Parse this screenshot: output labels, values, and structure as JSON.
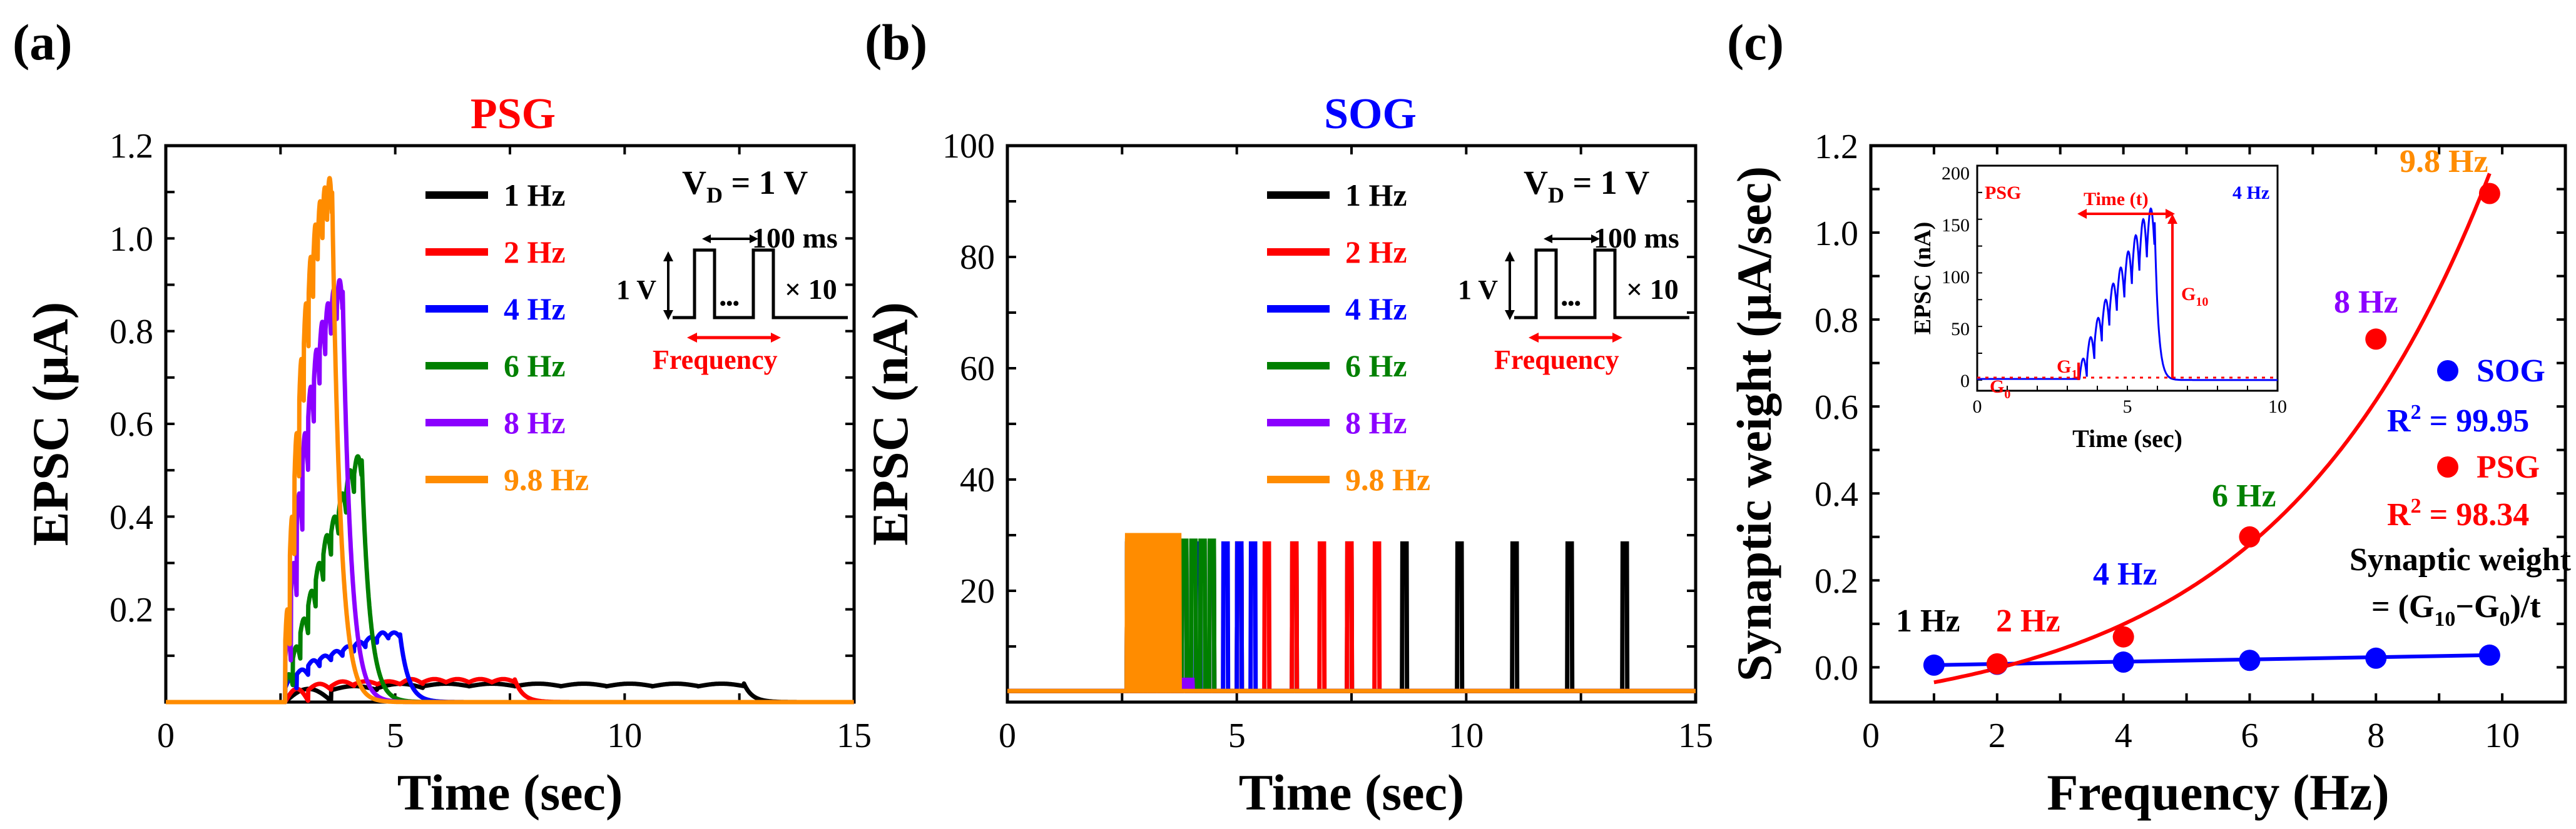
{
  "colors": {
    "axis": "#000000",
    "hz1": "#000000",
    "hz2": "#ff0000",
    "hz4": "#0000ff",
    "hz6": "#008000",
    "hz8": "#8b00ff",
    "hz98": "#ff8c00",
    "red": "#ff0000",
    "blue": "#0000ff"
  },
  "panels": {
    "a": {
      "letter": "(a)",
      "title": "PSG",
      "ylabel": "EPSC (μA)",
      "xlabel": "Time (sec)",
      "xticks": [
        "0",
        "5",
        "10",
        "15"
      ],
      "yticks": [
        "0.2",
        "0.4",
        "0.6",
        "0.8",
        "1.0",
        "1.2"
      ]
    },
    "b": {
      "letter": "(b)",
      "title": "SOG",
      "ylabel": "EPSC (nA)",
      "xlabel": "Time (sec)",
      "xticks": [
        "0",
        "5",
        "10",
        "15"
      ],
      "yticks": [
        "20",
        "40",
        "60",
        "80",
        "100"
      ]
    },
    "c": {
      "letter": "(c)",
      "ylabel": "Synaptic weight (μA/sec)",
      "xlabel": "Frequency (Hz)",
      "xticks": [
        "0",
        "2",
        "4",
        "6",
        "8",
        "10"
      ],
      "yticks": [
        "0.0",
        "0.2",
        "0.4",
        "0.6",
        "0.8",
        "1.0",
        "1.2"
      ]
    }
  },
  "legend": [
    "1 Hz",
    "2 Hz",
    "4 Hz",
    "6 Hz",
    "8 Hz",
    "9.8 Hz"
  ],
  "pulse_diagram": {
    "vd_main": "V",
    "vd_sub": "D",
    "vd_rest": " = 1 V",
    "amplitude": "1 V",
    "period": "100 ms",
    "repeat": "× 10",
    "dots": "•••",
    "frequency": "Frequency"
  },
  "panel_c_labels": {
    "points": [
      "1 Hz",
      "2 Hz",
      "4 Hz",
      "6 Hz",
      "8 Hz",
      "9.8 Hz"
    ],
    "sog_legend": "SOG",
    "sog_r2_pre": "R",
    "sog_r2_sup": "2",
    "sog_r2_val": " = 99.95",
    "psg_legend": "PSG",
    "psg_r2_pre": "R",
    "psg_r2_sup": "2",
    "psg_r2_val": " = 98.34",
    "formula_title": "Synaptic weight",
    "formula_pre": "= (G",
    "formula_sub1": "10",
    "formula_mid": "−G",
    "formula_sub2": "0",
    "formula_post": ")/t"
  },
  "inset": {
    "ylabel": "EPSC (nA)",
    "xlabel": "Time (sec)",
    "xticks": [
      "0",
      "5",
      "10"
    ],
    "yticks": [
      "0",
      "50",
      "100",
      "150",
      "200"
    ],
    "psg": "PSG",
    "freq": "4 Hz",
    "time_label": "Time (t)",
    "g10_main": "G",
    "g10_sub": "10",
    "g1_main": "G",
    "g1_sub": "1",
    "g0_main": "G",
    "g0_sub": "0"
  },
  "chart_data": [
    {
      "type": "line",
      "panel": "a",
      "title": "PSG",
      "xlabel": "Time (sec)",
      "ylabel": "EPSC (μA)",
      "xlim": [
        0,
        15
      ],
      "ylim": [
        0,
        1.2
      ],
      "series": [
        {
          "name": "1 Hz",
          "start": 2.6,
          "period": 1.0,
          "count": 10,
          "amp": [
            0.03,
            0.035,
            0.04,
            0.04,
            0.04,
            0.04,
            0.04,
            0.04,
            0.04,
            0.04
          ]
        },
        {
          "name": "2 Hz",
          "start": 2.6,
          "period": 0.5,
          "count": 10,
          "amp": [
            0.03,
            0.04,
            0.045,
            0.045,
            0.045,
            0.05,
            0.05,
            0.05,
            0.05,
            0.05
          ]
        },
        {
          "name": "4 Hz",
          "start": 2.6,
          "period": 0.25,
          "count": 10,
          "amp": [
            0.05,
            0.07,
            0.09,
            0.1,
            0.11,
            0.12,
            0.13,
            0.14,
            0.15,
            0.15
          ]
        },
        {
          "name": "6 Hz",
          "start": 2.6,
          "period": 0.1667,
          "count": 10,
          "amp": [
            0.06,
            0.12,
            0.18,
            0.24,
            0.3,
            0.36,
            0.4,
            0.45,
            0.5,
            0.53
          ]
        },
        {
          "name": "8 Hz",
          "start": 2.6,
          "period": 0.125,
          "count": 10,
          "amp": [
            0.15,
            0.3,
            0.45,
            0.58,
            0.68,
            0.76,
            0.82,
            0.86,
            0.89,
            0.91
          ]
        },
        {
          "name": "9.8 Hz",
          "start": 2.6,
          "period": 0.102,
          "count": 10,
          "amp": [
            0.2,
            0.4,
            0.58,
            0.74,
            0.86,
            0.96,
            1.03,
            1.08,
            1.11,
            1.13
          ]
        }
      ]
    },
    {
      "type": "line",
      "panel": "b",
      "title": "SOG",
      "xlabel": "Time (sec)",
      "ylabel": "EPSC (nA)",
      "xlim": [
        0,
        15
      ],
      "ylim": [
        0,
        100
      ],
      "baseline": 2,
      "series": [
        {
          "name": "1 Hz",
          "start": 2.6,
          "period": 1.2,
          "count": 10,
          "pulse_height": 28.5
        },
        {
          "name": "2 Hz",
          "start": 2.6,
          "period": 0.6,
          "count": 10,
          "pulse_height": 28.5
        },
        {
          "name": "4 Hz",
          "start": 2.6,
          "period": 0.3,
          "count": 10,
          "pulse_height": 28.5
        },
        {
          "name": "6 Hz",
          "start": 2.6,
          "period": 0.2,
          "count": 10,
          "pulse_height": 29
        },
        {
          "name": "8 Hz",
          "start": 2.6,
          "period": 0.15,
          "count": 10,
          "pulse_height": 4
        },
        {
          "name": "9.8 Hz",
          "start": 2.6,
          "period": 0.12,
          "count": 10,
          "pulse_height": 30
        }
      ]
    },
    {
      "type": "scatter",
      "panel": "c",
      "xlabel": "Frequency (Hz)",
      "ylabel": "Synaptic weight (μA/sec)",
      "xlim": [
        0,
        11
      ],
      "ylim": [
        -0.08,
        1.2
      ],
      "series": [
        {
          "name": "SOG",
          "r2": "99.95",
          "x": [
            1,
            2,
            4,
            6,
            8,
            9.8
          ],
          "y": [
            0.005,
            0.007,
            0.012,
            0.016,
            0.021,
            0.028
          ],
          "fit": "linear",
          "fit_params": [
            0.0025,
            0.0026
          ]
        },
        {
          "name": "PSG",
          "r2": "98.34",
          "x": [
            2,
            4,
            6,
            8,
            9.8
          ],
          "y": [
            0.008,
            0.07,
            0.3,
            0.755,
            1.09
          ],
          "fit": "exponential",
          "fit_params": [
            -0.128,
            0.0695,
            0.296
          ]
        }
      ]
    },
    {
      "type": "line",
      "panel": "c-inset",
      "title": "PSG 4 Hz",
      "xlabel": "Time (sec)",
      "ylabel": "EPSC (nA)",
      "xlim": [
        0,
        10
      ],
      "ylim": [
        -10,
        200
      ],
      "series": [
        {
          "name": "4 Hz",
          "start": 3.4,
          "period": 0.25,
          "count": 10,
          "amp": [
            20,
            40,
            58,
            75,
            90,
            105,
            120,
            135,
            150,
            160
          ],
          "decay_end": 6.5
        }
      ]
    }
  ]
}
